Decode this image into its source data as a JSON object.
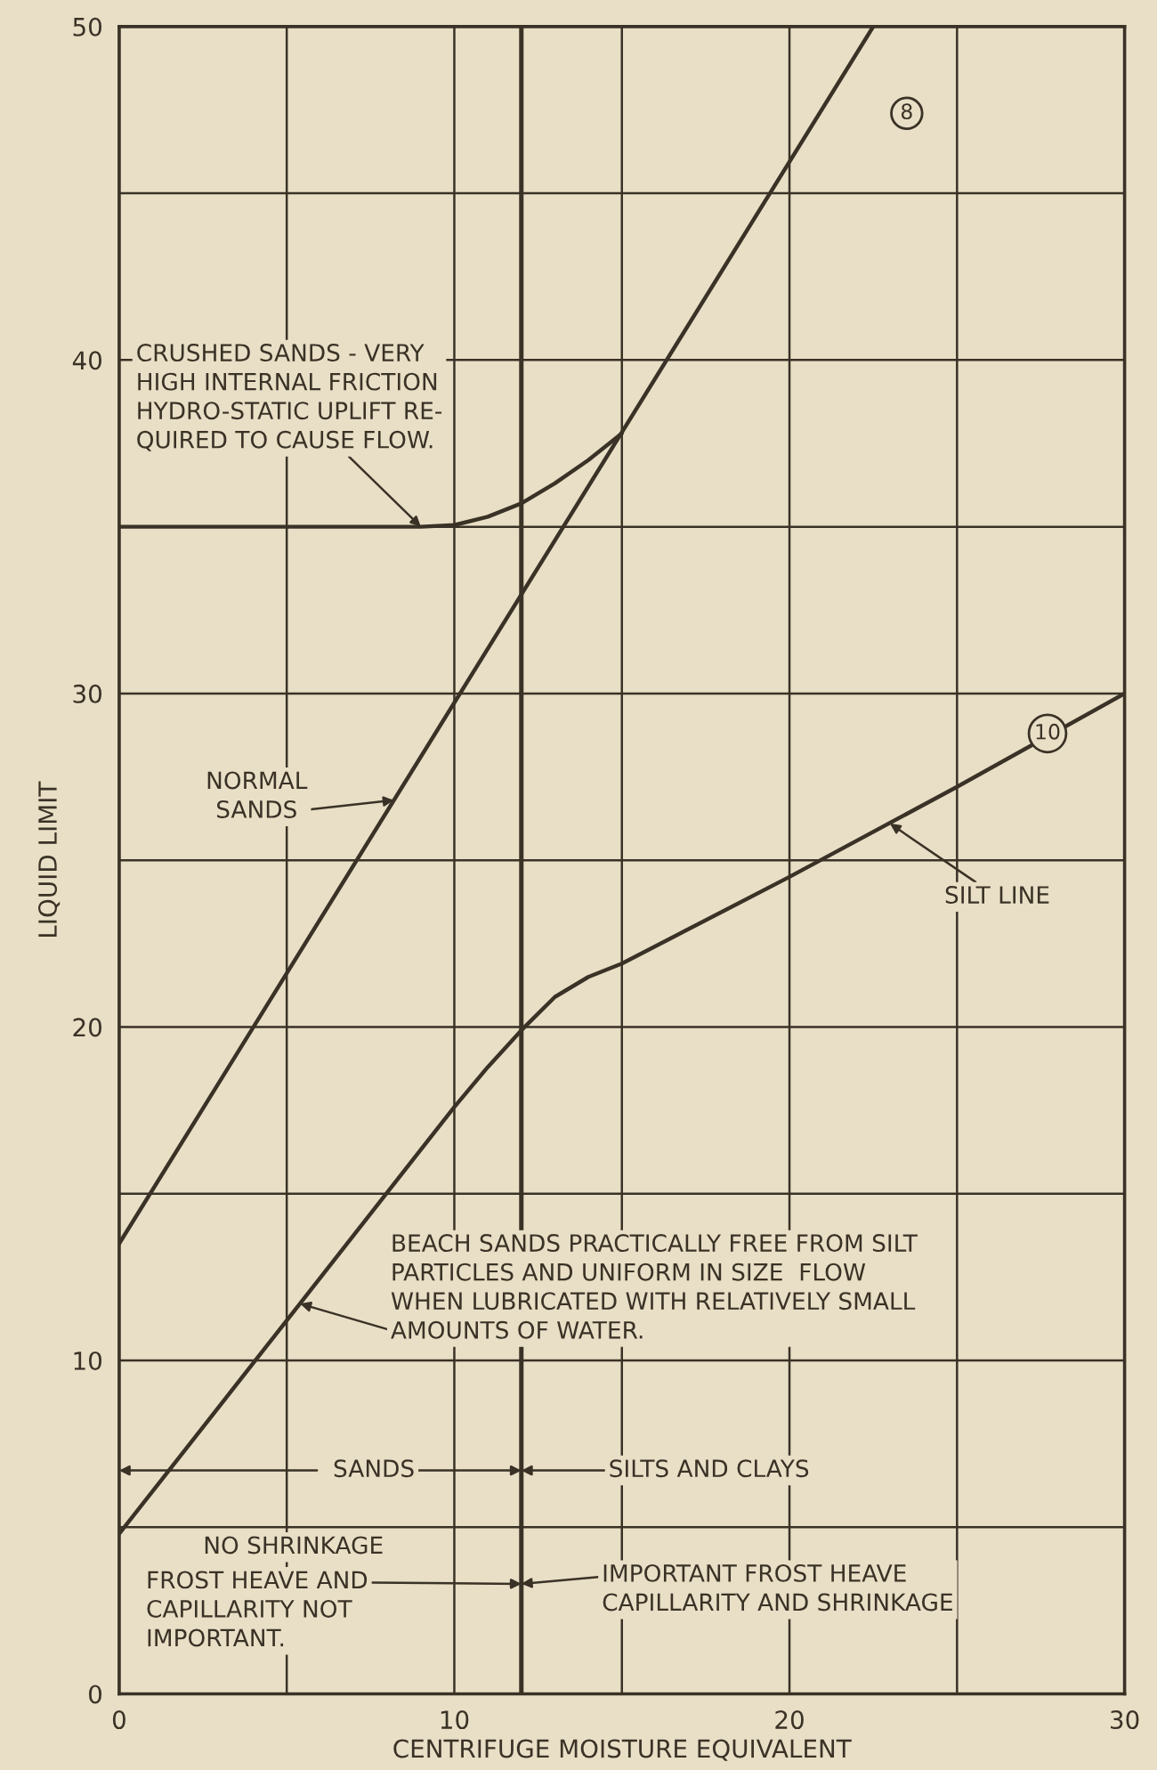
{
  "chart_data": {
    "type": "line",
    "xlabel": "CENTRIFUGE MOISTURE EQUIVALENT",
    "ylabel": "LIQUID LIMIT",
    "series": [
      {
        "color": "#3a3226",
        "x": [
          0,
          22.5
        ],
        "values": [
          13.5,
          50
        ]
      },
      {
        "color": "#3a3226",
        "x": [
          0,
          9,
          10,
          11,
          12,
          13,
          14,
          15
        ],
        "values": [
          35,
          35,
          35.05,
          35.3,
          35.7,
          36.3,
          37,
          37.8
        ]
      },
      {
        "color": "#3a3226",
        "x": [
          0,
          5,
          10,
          11,
          12,
          13,
          14,
          15,
          20,
          25,
          30
        ],
        "values": [
          4.8,
          11.2,
          17.6,
          18.8,
          19.9,
          20.9,
          21.5,
          21.9,
          24.5,
          27.2,
          30
        ]
      }
    ],
    "xlim": [
      0,
      30
    ],
    "ylim": [
      0,
      50
    ],
    "xticks": [
      0,
      {
        "value": 5,
        "label": null
      },
      10,
      {
        "value": 15,
        "label": null
      },
      20,
      {
        "value": 25,
        "label": null
      },
      30
    ],
    "yticks": [
      0,
      {
        "value": 5,
        "label": null
      },
      10,
      {
        "value": 15,
        "label": null
      },
      20,
      {
        "value": 25,
        "label": null
      },
      30,
      {
        "value": 35,
        "label": null
      },
      40,
      {
        "value": 45,
        "label": null
      },
      50
    ],
    "grid": true,
    "marker": "none",
    "line_style": "solid",
    "ref_lines": [
      {
        "axis": "x",
        "value": 12,
        "color": "#3a3226"
      }
    ],
    "annotations": [
      {
        "text": "8",
        "x": 23.5,
        "y": 47.4
      },
      {
        "text": "10",
        "x": 27.7,
        "y": 28.8
      },
      {
        "text": "CRUSHED SANDS - VERY\nHIGH INTERNAL FRICTION\nHYDRO-STATIC UPLIFT RE-\nQUIRED TO CAUSE FLOW.",
        "x": 9,
        "y": 35
      },
      "NORMAL\nSANDS",
      {
        "text": "SILT LINE",
        "x": 23,
        "y": 26.1
      },
      {
        "text": "BEACH SANDS PRACTICALLY FREE FROM SILT\nPARTICLES AND UNIFORM IN SIZE  FLOW\nWHEN LUBRICATED WITH RELATIVELY SMALL\nAMOUNTS OF WATER.",
        "x": 5.4,
        "y": 11.7
      },
      "SANDS",
      "SILTS AND CLAYS",
      "NO SHRINKAGE",
      {
        "text": "FROST HEAVE AND\nCAPILLARITY NOT\nIMPORTANT.",
        "x": 12,
        "y": 3.3
      },
      "IMPORTANT FROST HEAVE\nCAPILLARITY AND SHRINKAGE"
    ]
  }
}
